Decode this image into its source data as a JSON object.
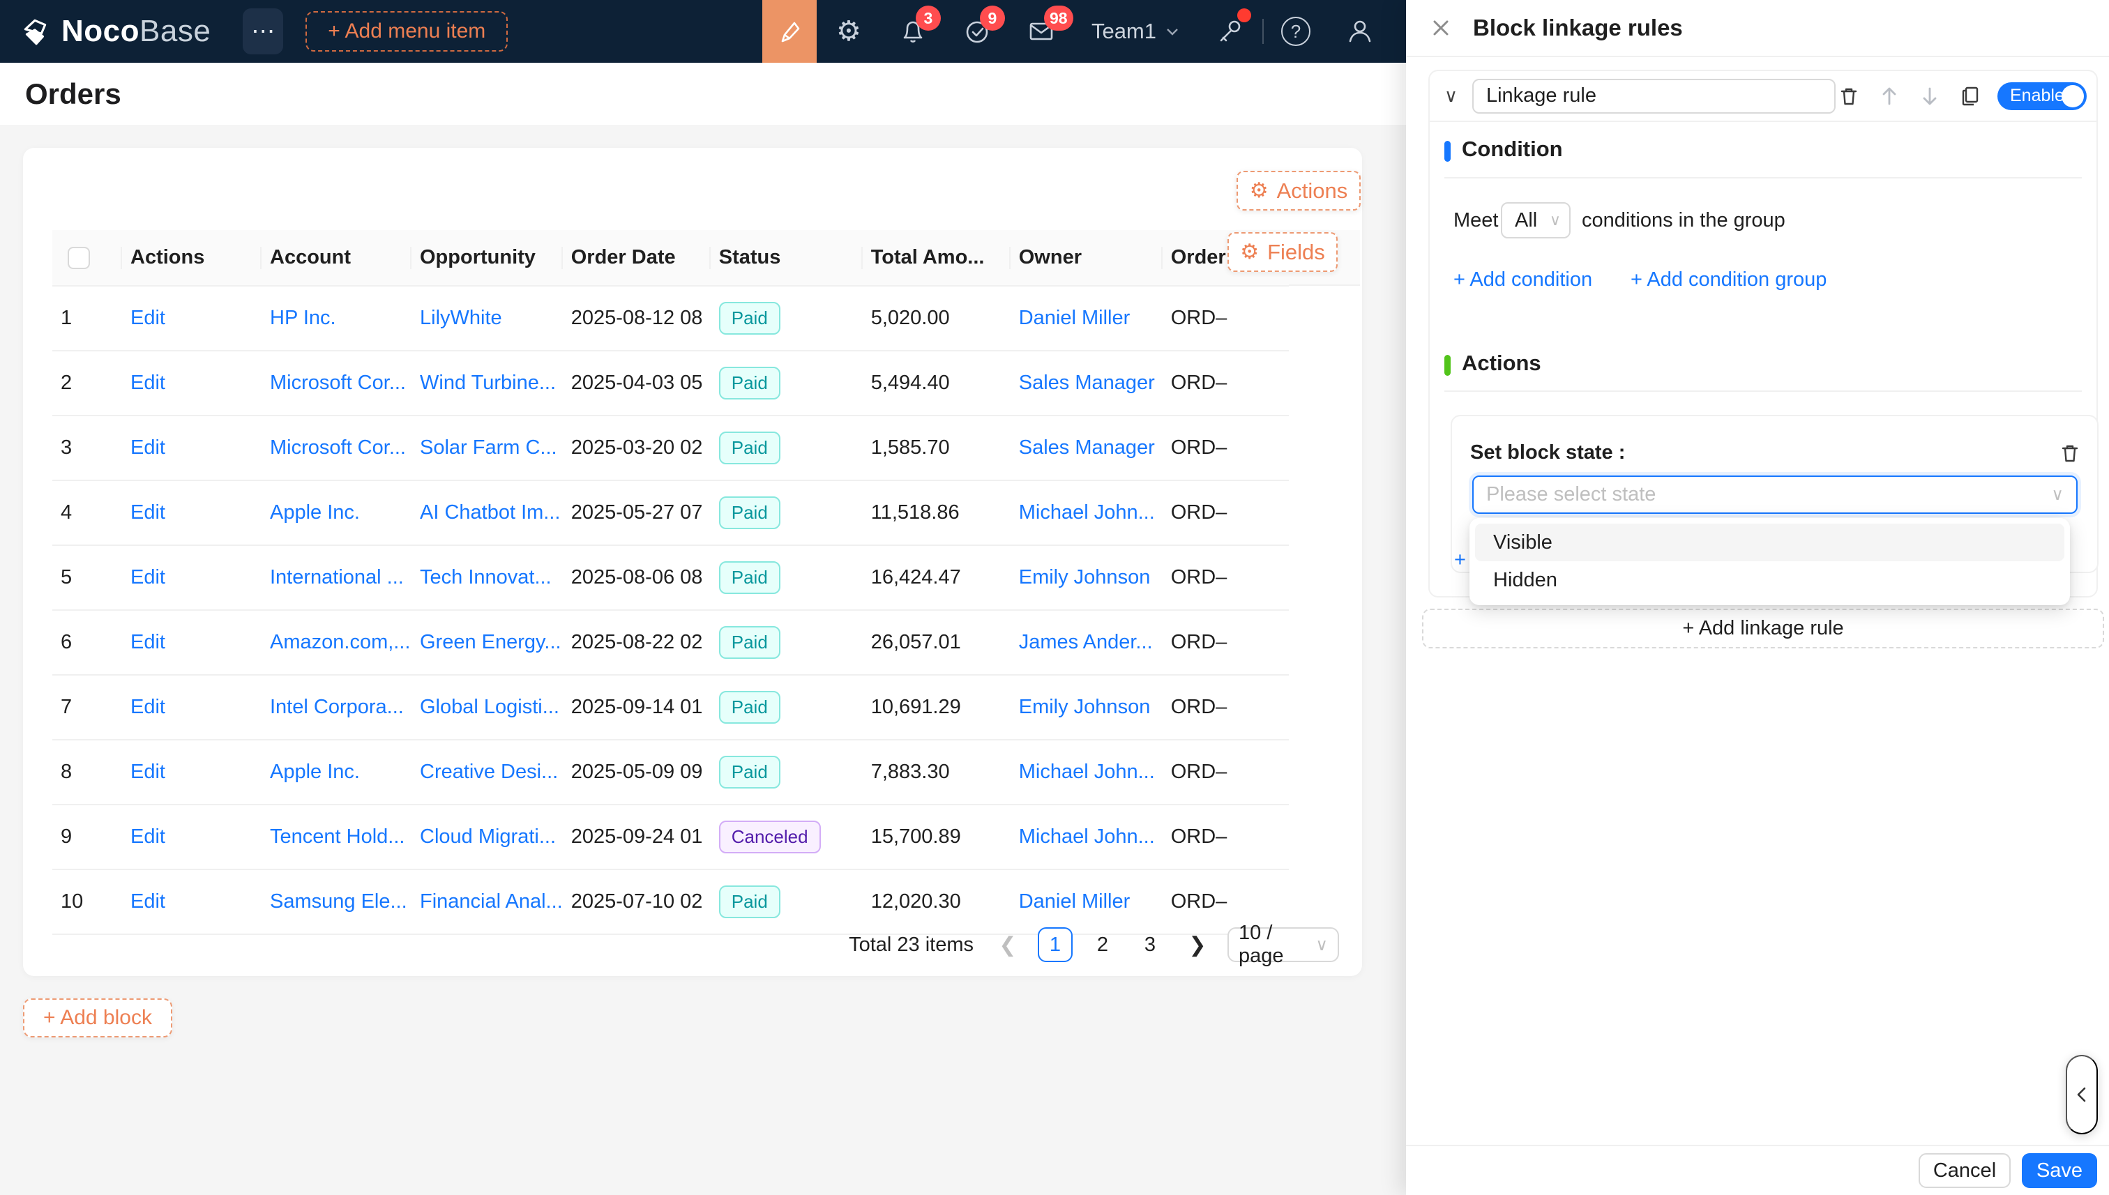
{
  "colors": {
    "navbar_bg": "#0d2136",
    "accent_orange": "#ed7f52",
    "primary_blue": "#1677ff",
    "danger_red": "#ff4d4f",
    "condition_bar": "#1677ff",
    "actions_bar": "#52c41a",
    "paid_text": "#08979c",
    "canceled_text": "#531dab"
  },
  "icons": {
    "more": "⋯",
    "gear": "⚙",
    "question": "?",
    "chevron_down": "∨",
    "chevron_left_pg": "❮",
    "chevron_right_pg": "❯",
    "close": "✕",
    "plus": "+"
  },
  "navbar": {
    "brand_part1": "Noco",
    "brand_part2": "Base",
    "add_menu_item": "+ Add menu item",
    "team_label": "Team1",
    "badges": {
      "notifications": "3",
      "tasks": "9",
      "mail": "98"
    }
  },
  "page": {
    "title": "Orders",
    "add_block": "+ Add block"
  },
  "card_config": {
    "actions_button": "Actions",
    "fields_button": "Fields"
  },
  "table": {
    "headers": [
      "",
      "Actions",
      "Account",
      "Opportunity",
      "Order Date",
      "Status",
      "Total Amo...",
      "Owner",
      "Order Numb"
    ],
    "rows": [
      {
        "index": "1",
        "action": "Edit",
        "account": "HP Inc.",
        "opportunity": "LilyWhite",
        "order_date": "2025-08-12 08",
        "status": "Paid",
        "status_type": "paid",
        "total": "5,020.00",
        "owner": "Daniel Miller",
        "order_no": "ORD–"
      },
      {
        "index": "2",
        "action": "Edit",
        "account": "Microsoft Cor...",
        "opportunity": "Wind Turbine...",
        "order_date": "2025-04-03 05",
        "status": "Paid",
        "status_type": "paid",
        "total": "5,494.40",
        "owner": "Sales Manager",
        "order_no": "ORD–"
      },
      {
        "index": "3",
        "action": "Edit",
        "account": "Microsoft Cor...",
        "opportunity": "Solar Farm C...",
        "order_date": "2025-03-20 02",
        "status": "Paid",
        "status_type": "paid",
        "total": "1,585.70",
        "owner": "Sales Manager",
        "order_no": "ORD–"
      },
      {
        "index": "4",
        "action": "Edit",
        "account": "Apple Inc.",
        "opportunity": "AI Chatbot Im...",
        "order_date": "2025-05-27 07",
        "status": "Paid",
        "status_type": "paid",
        "total": "11,518.86",
        "owner": "Michael John...",
        "order_no": "ORD–"
      },
      {
        "index": "5",
        "action": "Edit",
        "account": "International ...",
        "opportunity": "Tech Innovat...",
        "order_date": "2025-08-06 08",
        "status": "Paid",
        "status_type": "paid",
        "total": "16,424.47",
        "owner": "Emily Johnson",
        "order_no": "ORD–"
      },
      {
        "index": "6",
        "action": "Edit",
        "account": "Amazon.com,...",
        "opportunity": "Green Energy...",
        "order_date": "2025-08-22 02",
        "status": "Paid",
        "status_type": "paid",
        "total": "26,057.01",
        "owner": "James Ander...",
        "order_no": "ORD–"
      },
      {
        "index": "7",
        "action": "Edit",
        "account": "Intel Corpora...",
        "opportunity": "Global Logisti...",
        "order_date": "2025-09-14 01",
        "status": "Paid",
        "status_type": "paid",
        "total": "10,691.29",
        "owner": "Emily Johnson",
        "order_no": "ORD–"
      },
      {
        "index": "8",
        "action": "Edit",
        "account": "Apple Inc.",
        "opportunity": "Creative Desi...",
        "order_date": "2025-05-09 09",
        "status": "Paid",
        "status_type": "paid",
        "total": "7,883.30",
        "owner": "Michael John...",
        "order_no": "ORD–"
      },
      {
        "index": "9",
        "action": "Edit",
        "account": "Tencent Hold...",
        "opportunity": "Cloud Migrati...",
        "order_date": "2025-09-24 01",
        "status": "Canceled",
        "status_type": "canceled",
        "total": "15,700.89",
        "owner": "Michael John...",
        "order_no": "ORD–"
      },
      {
        "index": "10",
        "action": "Edit",
        "account": "Samsung Ele...",
        "opportunity": "Financial Anal...",
        "order_date": "2025-07-10 02",
        "status": "Paid",
        "status_type": "paid",
        "total": "12,020.30",
        "owner": "Daniel Miller",
        "order_no": "ORD–"
      }
    ]
  },
  "pagination": {
    "total_text": "Total 23 items",
    "pages": [
      "1",
      "2",
      "3"
    ],
    "active_page": "1",
    "page_size": "10 / page"
  },
  "drawer": {
    "title": "Block linkage rules",
    "rule": {
      "name": "Linkage rule",
      "enable_label": "Enable"
    },
    "condition": {
      "title": "Condition",
      "meet_label": "Meet",
      "meet_value": "All",
      "meet_suffix": "conditions in the group",
      "add_condition": "+ Add condition",
      "add_condition_group": "+ Add condition group"
    },
    "actions": {
      "title": "Actions",
      "set_block_state": "Set block state :",
      "select_placeholder": "Please select state",
      "options": [
        "Visible",
        "Hidden"
      ],
      "add_action": "+ Add action"
    },
    "add_linkage_rule": "+ Add linkage rule",
    "footer": {
      "cancel": "Cancel",
      "save": "Save"
    }
  }
}
